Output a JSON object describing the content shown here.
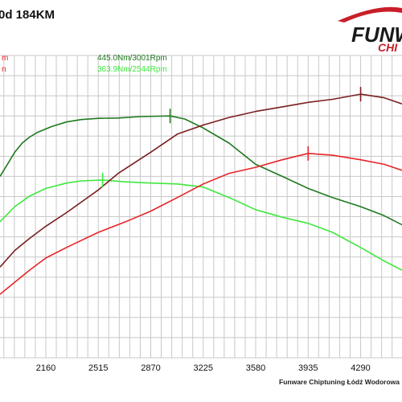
{
  "chart_data": {
    "type": "line",
    "title": "0d 184KM",
    "x_ticks": [
      2160,
      2515,
      2870,
      3225,
      3580,
      3935,
      4290
    ],
    "xlim": [
      1850,
      4570
    ],
    "ylim": [
      0,
      100
    ],
    "grid": true,
    "credit": "Funware Chiptuning Łódź Wodorowa",
    "logo": {
      "main": "FUNW",
      "sub": "CHI"
    },
    "legend_fragments": [
      "m",
      "n"
    ],
    "series": [
      {
        "role": "torque-tuned",
        "color": "#1f7a1f",
        "peak": {
          "x": 3001,
          "y": 80.0,
          "label": "445.0Nm/3001Rpm"
        },
        "points": [
          [
            1850,
            60
          ],
          [
            1900,
            64
          ],
          [
            1950,
            68
          ],
          [
            2000,
            71
          ],
          [
            2050,
            73
          ],
          [
            2100,
            74.5
          ],
          [
            2200,
            76.5
          ],
          [
            2300,
            78
          ],
          [
            2400,
            78.8
          ],
          [
            2515,
            79.2
          ],
          [
            2650,
            79.3
          ],
          [
            2800,
            79.8
          ],
          [
            3001,
            80.0
          ],
          [
            3100,
            79
          ],
          [
            3225,
            76
          ],
          [
            3400,
            71
          ],
          [
            3580,
            64
          ],
          [
            3760,
            60
          ],
          [
            3935,
            56
          ],
          [
            4100,
            53
          ],
          [
            4290,
            50
          ],
          [
            4450,
            47
          ],
          [
            4570,
            44
          ]
        ]
      },
      {
        "role": "torque-stock",
        "color": "#3ee83e",
        "peak": {
          "x": 2544,
          "y": 58.8,
          "label": "363.9Nm/2544Rpm"
        },
        "points": [
          [
            1850,
            45
          ],
          [
            1950,
            50
          ],
          [
            2050,
            53.5
          ],
          [
            2160,
            56
          ],
          [
            2300,
            57.8
          ],
          [
            2400,
            58.5
          ],
          [
            2544,
            58.8
          ],
          [
            2700,
            58.2
          ],
          [
            2870,
            57.8
          ],
          [
            3050,
            57.5
          ],
          [
            3225,
            56.5
          ],
          [
            3400,
            53
          ],
          [
            3580,
            49
          ],
          [
            3760,
            46.5
          ],
          [
            3935,
            44.5
          ],
          [
            4100,
            41.5
          ],
          [
            4290,
            36.5
          ],
          [
            4450,
            32
          ],
          [
            4570,
            29
          ]
        ]
      },
      {
        "role": "power-tuned",
        "color": "#7a1f1f",
        "peak": {
          "x": 4290,
          "y": 87.2
        },
        "points": [
          [
            1850,
            30
          ],
          [
            1950,
            35.5
          ],
          [
            2050,
            39.5
          ],
          [
            2160,
            43.5
          ],
          [
            2300,
            48
          ],
          [
            2400,
            51.5
          ],
          [
            2515,
            55.5
          ],
          [
            2650,
            61
          ],
          [
            2870,
            68
          ],
          [
            3050,
            74
          ],
          [
            3225,
            77
          ],
          [
            3400,
            79.5
          ],
          [
            3580,
            81.5
          ],
          [
            3760,
            83
          ],
          [
            3935,
            84.5
          ],
          [
            4100,
            85.5
          ],
          [
            4290,
            87.2
          ],
          [
            4450,
            86
          ],
          [
            4570,
            84
          ]
        ]
      },
      {
        "role": "power-stock",
        "color": "#e8242a",
        "peak": {
          "x": 3935,
          "y": 67.6
        },
        "points": [
          [
            1850,
            21
          ],
          [
            1950,
            25
          ],
          [
            2050,
            29
          ],
          [
            2160,
            33
          ],
          [
            2300,
            36.5
          ],
          [
            2515,
            41.5
          ],
          [
            2700,
            45
          ],
          [
            2870,
            48.5
          ],
          [
            3050,
            53
          ],
          [
            3225,
            57.5
          ],
          [
            3400,
            61
          ],
          [
            3580,
            63
          ],
          [
            3760,
            65.5
          ],
          [
            3935,
            67.6
          ],
          [
            4100,
            67
          ],
          [
            4290,
            65.5
          ],
          [
            4450,
            64
          ],
          [
            4570,
            62
          ]
        ]
      }
    ]
  }
}
